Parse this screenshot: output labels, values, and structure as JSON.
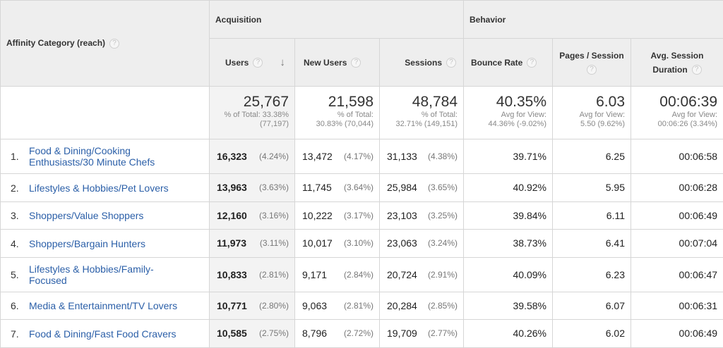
{
  "header": {
    "dimension_label": "Affinity Category (reach)",
    "groups": {
      "acquisition": "Acquisition",
      "behavior": "Behavior"
    },
    "metrics": {
      "users": "Users",
      "new_users": "New Users",
      "sessions": "Sessions",
      "bounce_rate": "Bounce Rate",
      "pages_session": "Pages / Session",
      "avg_duration": "Avg. Session Duration"
    },
    "help_glyph": "?",
    "sort_arrow": "↓",
    "sort_icon": "arrow-down-icon"
  },
  "totals": {
    "users": {
      "value": "25,767",
      "sub1": "% of Total: 33.38%",
      "sub2": "(77,197)"
    },
    "new_users": {
      "value": "21,598",
      "sub1": "% of Total:",
      "sub2": "30.83% (70,044)"
    },
    "sessions": {
      "value": "48,784",
      "sub1": "% of Total:",
      "sub2": "32.71% (149,151)"
    },
    "bounce_rate": {
      "value": "40.35%",
      "sub1": "Avg for View:",
      "sub2": "44.36% (-9.02%)"
    },
    "pages_session": {
      "value": "6.03",
      "sub1": "Avg for View:",
      "sub2": "5.50 (9.62%)"
    },
    "avg_duration": {
      "value": "00:06:39",
      "sub1": "Avg for View:",
      "sub2": "00:06:26 (3.34%)"
    }
  },
  "rows": [
    {
      "index": "1.",
      "category": "Food & Dining/Cooking Enthusiasts/30 Minute Chefs",
      "users": "16,323",
      "users_pct": "(4.24%)",
      "new_users": "13,472",
      "new_users_pct": "(4.17%)",
      "sessions": "31,133",
      "sessions_pct": "(4.38%)",
      "bounce_rate": "39.71%",
      "pages_session": "6.25",
      "avg_duration": "00:06:58"
    },
    {
      "index": "2.",
      "category": "Lifestyles & Hobbies/Pet Lovers",
      "users": "13,963",
      "users_pct": "(3.63%)",
      "new_users": "11,745",
      "new_users_pct": "(3.64%)",
      "sessions": "25,984",
      "sessions_pct": "(3.65%)",
      "bounce_rate": "40.92%",
      "pages_session": "5.95",
      "avg_duration": "00:06:28"
    },
    {
      "index": "3.",
      "category": "Shoppers/Value Shoppers",
      "users": "12,160",
      "users_pct": "(3.16%)",
      "new_users": "10,222",
      "new_users_pct": "(3.17%)",
      "sessions": "23,103",
      "sessions_pct": "(3.25%)",
      "bounce_rate": "39.84%",
      "pages_session": "6.11",
      "avg_duration": "00:06:49"
    },
    {
      "index": "4.",
      "category": "Shoppers/Bargain Hunters",
      "users": "11,973",
      "users_pct": "(3.11%)",
      "new_users": "10,017",
      "new_users_pct": "(3.10%)",
      "sessions": "23,063",
      "sessions_pct": "(3.24%)",
      "bounce_rate": "38.73%",
      "pages_session": "6.41",
      "avg_duration": "00:07:04"
    },
    {
      "index": "5.",
      "category": "Lifestyles & Hobbies/Family-Focused",
      "users": "10,833",
      "users_pct": "(2.81%)",
      "new_users": "9,171",
      "new_users_pct": "(2.84%)",
      "sessions": "20,724",
      "sessions_pct": "(2.91%)",
      "bounce_rate": "40.09%",
      "pages_session": "6.23",
      "avg_duration": "00:06:47"
    },
    {
      "index": "6.",
      "category": "Media & Entertainment/TV Lovers",
      "users": "10,771",
      "users_pct": "(2.80%)",
      "new_users": "9,063",
      "new_users_pct": "(2.81%)",
      "sessions": "20,284",
      "sessions_pct": "(2.85%)",
      "bounce_rate": "39.58%",
      "pages_session": "6.07",
      "avg_duration": "00:06:31"
    },
    {
      "index": "7.",
      "category": "Food & Dining/Fast Food Cravers",
      "users": "10,585",
      "users_pct": "(2.75%)",
      "new_users": "8,796",
      "new_users_pct": "(2.72%)",
      "sessions": "19,709",
      "sessions_pct": "(2.77%)",
      "bounce_rate": "40.26%",
      "pages_session": "6.02",
      "avg_duration": "00:06:49"
    }
  ]
}
